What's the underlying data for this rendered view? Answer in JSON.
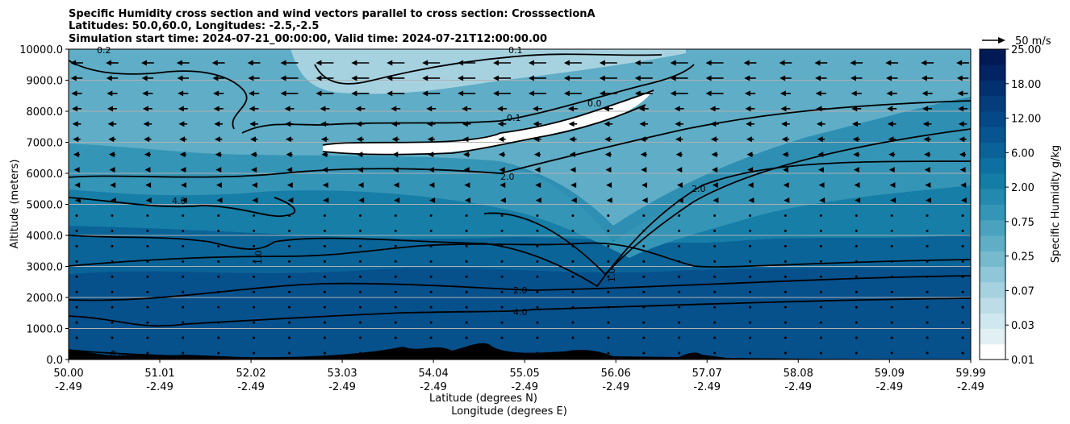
{
  "chart_data": {
    "type": "heatmap",
    "title_lines": [
      "Specific Humidity cross section and wind vectors parallel to cross section: CrosssectionA",
      "Latitudes: 50.0,60.0, Longitudes: -2.5,-2.5",
      "Simulation start time: 2024-07-21_00:00:00, Valid time: 2024-07-21T12:00:00.00"
    ],
    "ylabel": "Altitude (meters)",
    "xlabel_lat": "Latitude (degrees N)",
    "xlabel_lon": "Longitude (degrees E)",
    "ylim": [
      0,
      10000
    ],
    "xlim": [
      50.0,
      59.99
    ],
    "y_ticks": [
      "0.0",
      "1000.0",
      "2000.0",
      "3000.0",
      "4000.0",
      "5000.0",
      "6000.0",
      "7000.0",
      "8000.0",
      "9000.0",
      "10000.0"
    ],
    "x_ticks": [
      {
        "lat": "50.00",
        "lon": "-2.49"
      },
      {
        "lat": "51.01",
        "lon": "-2.49"
      },
      {
        "lat": "52.02",
        "lon": "-2.49"
      },
      {
        "lat": "53.03",
        "lon": "-2.49"
      },
      {
        "lat": "54.04",
        "lon": "-2.49"
      },
      {
        "lat": "55.05",
        "lon": "-2.49"
      },
      {
        "lat": "56.06",
        "lon": "-2.49"
      },
      {
        "lat": "57.07",
        "lon": "-2.49"
      },
      {
        "lat": "58.08",
        "lon": "-2.49"
      },
      {
        "lat": "59.09",
        "lon": "-2.49"
      },
      {
        "lat": "59.99",
        "lon": "-2.49"
      }
    ],
    "colorbar": {
      "label": "Specific Humidity g/kg",
      "tick_labels": [
        "0.01",
        "0.03",
        "0.07",
        "0.25",
        "0.75",
        "2.00",
        "6.00",
        "12.00",
        "18.00",
        "25.00"
      ],
      "colors": [
        "#ffffff",
        "#e3f0f3",
        "#cfe7ee",
        "#bcdde8",
        "#a6d2e0",
        "#8fc6d8",
        "#77bace",
        "#5faec6",
        "#4aa2bf",
        "#3595b6",
        "#2489ae",
        "#147da6",
        "#0e70a0",
        "#0a6298",
        "#075590",
        "#054888",
        "#043c7c",
        "#03306e",
        "#022462",
        "#011a55"
      ]
    },
    "quiver_key": "50 m/s",
    "contour_labels": [
      "0.1",
      "0.2",
      "0.0",
      "2.0",
      "4.0",
      "1.0",
      "8.0"
    ],
    "contour_levels": [
      0.0,
      0.1,
      0.2,
      1.0,
      2.0,
      4.0,
      8.0
    ]
  }
}
